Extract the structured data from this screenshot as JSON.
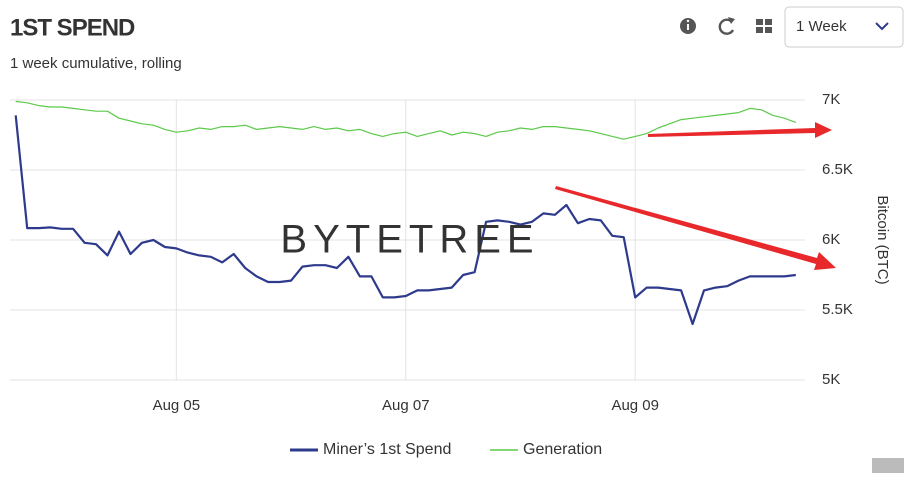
{
  "header": {
    "title": "1ST SPEND",
    "subtitle": "1 week cumulative, rolling",
    "period": "1 Week"
  },
  "chart_data": {
    "type": "line",
    "watermark": "BYTETREE",
    "y_label": "Bitcoin (BTC)",
    "x": [
      3.6,
      3.7,
      3.8,
      3.9,
      4.0,
      4.1,
      4.2,
      4.3,
      4.4,
      4.5,
      4.6,
      4.7,
      4.8,
      4.9,
      5.0,
      5.1,
      5.2,
      5.3,
      5.4,
      5.5,
      5.6,
      5.7,
      5.8,
      5.9,
      6.0,
      6.1,
      6.2,
      6.3,
      6.4,
      6.5,
      6.6,
      6.7,
      6.8,
      6.9,
      7.0,
      7.1,
      7.2,
      7.3,
      7.4,
      7.5,
      7.6,
      7.7,
      7.8,
      7.9,
      8.0,
      8.1,
      8.2,
      8.3,
      8.4,
      8.5,
      8.6,
      8.7,
      8.8,
      8.9,
      9.0,
      9.1,
      9.2,
      9.3,
      9.4,
      9.5,
      9.6,
      9.7,
      9.8,
      9.9,
      10.0,
      10.1,
      10.2,
      10.3,
      10.4
    ],
    "series": [
      {
        "name": "Miner’s 1st Spend",
        "color": "#2e3a8c",
        "values": [
          6890,
          6085,
          6085,
          6090,
          6080,
          6080,
          5980,
          5970,
          5890,
          6060,
          5900,
          5980,
          6000,
          5950,
          5940,
          5910,
          5890,
          5880,
          5840,
          5900,
          5800,
          5740,
          5700,
          5700,
          5710,
          5810,
          5820,
          5820,
          5800,
          5880,
          5740,
          5740,
          5590,
          5590,
          5600,
          5640,
          5640,
          5650,
          5660,
          5750,
          5770,
          6130,
          6140,
          6130,
          6110,
          6130,
          6190,
          6180,
          6250,
          6120,
          6150,
          6140,
          6030,
          6020,
          5590,
          5660,
          5660,
          5650,
          5640,
          5400,
          5640,
          5660,
          5670,
          5710,
          5740,
          5740,
          5740,
          5740,
          5750
        ]
      },
      {
        "name": "Generation",
        "color": "#5cc94a",
        "values": [
          6990,
          6980,
          6960,
          6950,
          6950,
          6940,
          6930,
          6920,
          6920,
          6870,
          6850,
          6830,
          6820,
          6790,
          6770,
          6780,
          6800,
          6790,
          6810,
          6810,
          6820,
          6790,
          6800,
          6810,
          6800,
          6790,
          6810,
          6790,
          6800,
          6780,
          6790,
          6760,
          6740,
          6760,
          6770,
          6740,
          6760,
          6780,
          6750,
          6770,
          6760,
          6740,
          6770,
          6780,
          6800,
          6790,
          6810,
          6810,
          6800,
          6790,
          6780,
          6760,
          6740,
          6720,
          6740,
          6760,
          6800,
          6830,
          6860,
          6870,
          6880,
          6890,
          6900,
          6910,
          6940,
          6930,
          6890,
          6870,
          6840
        ]
      }
    ],
    "xlim": [
      3.55,
      10.48
    ],
    "xticks": [
      {
        "value": 5,
        "label": "Aug 05"
      },
      {
        "value": 7,
        "label": "Aug 07"
      },
      {
        "value": 9,
        "label": "Aug 09"
      }
    ],
    "ylim": [
      5000,
      7000
    ],
    "yticks": [
      {
        "value": 5000,
        "label": "5K"
      },
      {
        "value": 5500,
        "label": "5.5K"
      },
      {
        "value": 6000,
        "label": "6K"
      },
      {
        "value": 6500,
        "label": "6.5K"
      },
      {
        "value": 7000,
        "label": "7K"
      }
    ],
    "grid": true
  }
}
